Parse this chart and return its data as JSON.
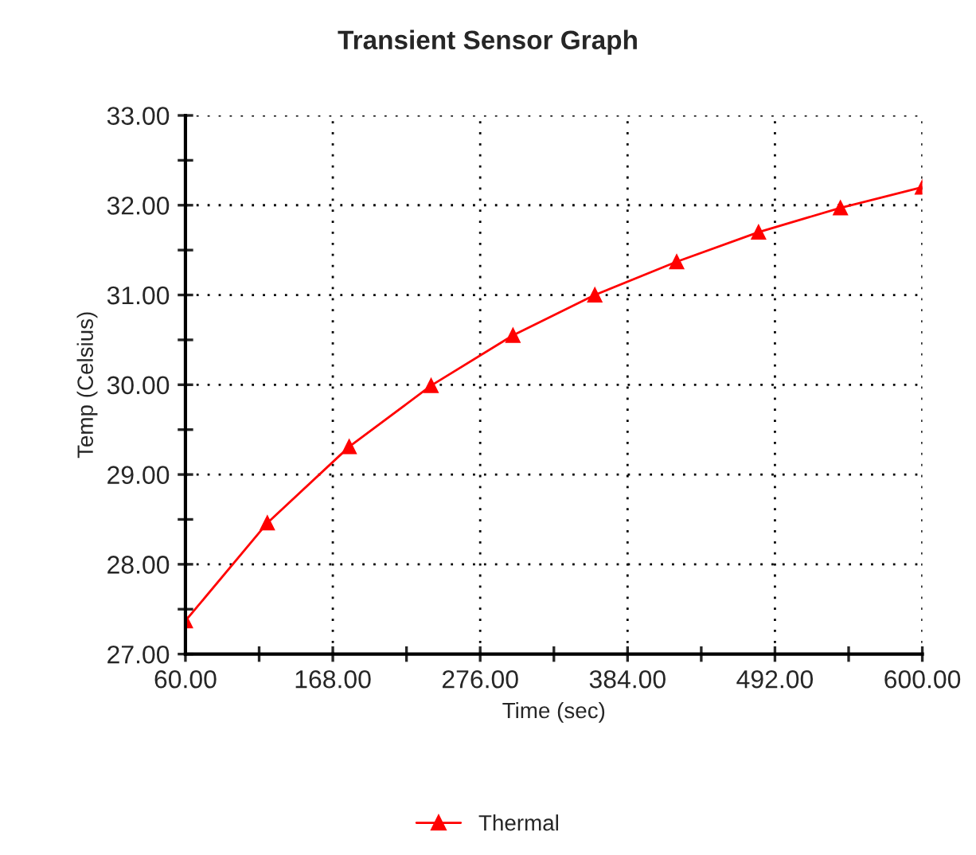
{
  "chart_data": {
    "type": "line",
    "title": "Transient Sensor Graph",
    "xlabel": "Time (sec)",
    "ylabel": "Temp (Celsius)",
    "x": [
      60,
      120,
      180,
      240,
      300,
      360,
      420,
      480,
      540,
      600
    ],
    "series": [
      {
        "name": "Thermal",
        "color": "#ff0000",
        "values": [
          27.37,
          28.46,
          29.31,
          29.99,
          30.55,
          31.0,
          31.37,
          31.7,
          31.97,
          32.2
        ]
      }
    ],
    "xlim": [
      60,
      600
    ],
    "xticks": [
      {
        "value": 60,
        "label": "60.00"
      },
      {
        "value": 168,
        "label": "168.00"
      },
      {
        "value": 276,
        "label": "276.00"
      },
      {
        "value": 384,
        "label": "384.00"
      },
      {
        "value": 492,
        "label": "492.00"
      },
      {
        "value": 600,
        "label": "600.00"
      }
    ],
    "ylim": [
      27,
      33
    ],
    "yticks": [
      {
        "value": 27,
        "label": "27.00"
      },
      {
        "value": 28,
        "label": "28.00"
      },
      {
        "value": 29,
        "label": "29.00"
      },
      {
        "value": 30,
        "label": "30.00"
      },
      {
        "value": 31,
        "label": "31.00"
      },
      {
        "value": 32,
        "label": "32.00"
      },
      {
        "value": 33,
        "label": "33.00"
      }
    ],
    "grid": true,
    "legend": "bottom",
    "marker": "triangle",
    "line_style": "solid"
  }
}
